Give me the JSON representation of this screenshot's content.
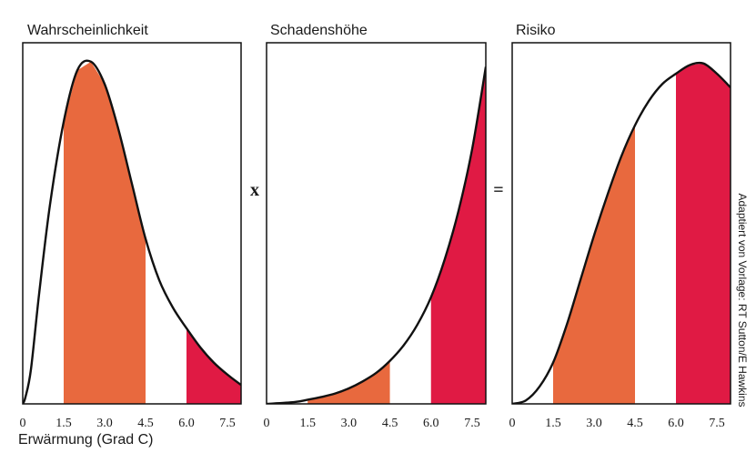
{
  "chart_data": [
    {
      "type": "area",
      "title": "Wahrscheinlichkeit",
      "xlabel": "Erwärmung (Grad C)",
      "ylabel": "",
      "xlim": [
        0,
        8
      ],
      "ylim": [
        0,
        1.05
      ],
      "tick_labels": [
        "0",
        "1.5",
        "3.0",
        "4.5",
        "6.0",
        "7.5"
      ],
      "x": [
        0,
        0.1,
        0.3,
        0.6,
        1.0,
        1.5,
        2.0,
        2.5,
        3.0,
        3.5,
        4.0,
        4.5,
        5.0,
        5.5,
        6.0,
        6.5,
        7.0,
        7.5,
        8.0
      ],
      "values": [
        0,
        0.02,
        0.1,
        0.32,
        0.58,
        0.82,
        0.97,
        0.995,
        0.93,
        0.8,
        0.64,
        0.48,
        0.36,
        0.28,
        0.22,
        0.165,
        0.12,
        0.085,
        0.055
      ],
      "shaded_ranges": [
        {
          "from": 1.5,
          "to": 4.5,
          "color": "#e8693e"
        },
        {
          "from": 6.0,
          "to": 8.0,
          "color": "#e01a44"
        }
      ]
    },
    {
      "type": "area",
      "title": "Schadenshöhe",
      "xlabel": "",
      "ylabel": "",
      "xlim": [
        0,
        8
      ],
      "ylim": [
        0,
        1.05
      ],
      "tick_labels": [
        "0",
        "1.5",
        "3.0",
        "4.5",
        "6.0",
        "7.5"
      ],
      "x": [
        0,
        1.0,
        1.5,
        2.0,
        2.5,
        3.0,
        3.5,
        4.0,
        4.5,
        5.0,
        5.5,
        6.0,
        6.5,
        7.0,
        7.5,
        8.0
      ],
      "values": [
        0,
        0.005,
        0.012,
        0.02,
        0.03,
        0.045,
        0.065,
        0.09,
        0.125,
        0.17,
        0.23,
        0.31,
        0.42,
        0.56,
        0.74,
        0.98
      ],
      "shaded_ranges": [
        {
          "from": 1.5,
          "to": 4.5,
          "color": "#e8693e"
        },
        {
          "from": 6.0,
          "to": 8.0,
          "color": "#e01a44"
        }
      ]
    },
    {
      "type": "area",
      "title": "Risiko",
      "xlabel": "",
      "ylabel": "",
      "xlim": [
        0,
        8
      ],
      "ylim": [
        0,
        1.05
      ],
      "tick_labels": [
        "0",
        "1.5",
        "3.0",
        "4.5",
        "6.0",
        "7.5"
      ],
      "x": [
        0,
        0.5,
        1.0,
        1.5,
        2.0,
        2.5,
        3.0,
        3.5,
        4.0,
        4.5,
        5.0,
        5.5,
        6.0,
        6.5,
        7.0,
        7.5,
        8.0
      ],
      "values": [
        0,
        0.01,
        0.05,
        0.12,
        0.23,
        0.36,
        0.49,
        0.61,
        0.72,
        0.81,
        0.88,
        0.93,
        0.96,
        0.985,
        0.99,
        0.96,
        0.92
      ],
      "shaded_ranges": [
        {
          "from": 1.5,
          "to": 4.5,
          "color": "#e8693e"
        },
        {
          "from": 6.0,
          "to": 8.0,
          "color": "#e01a44"
        }
      ]
    }
  ],
  "operators": {
    "multiply": "x",
    "equals": "="
  },
  "credit": "Adaptiert von Vorlage: RT Sutton/E Hawkins"
}
